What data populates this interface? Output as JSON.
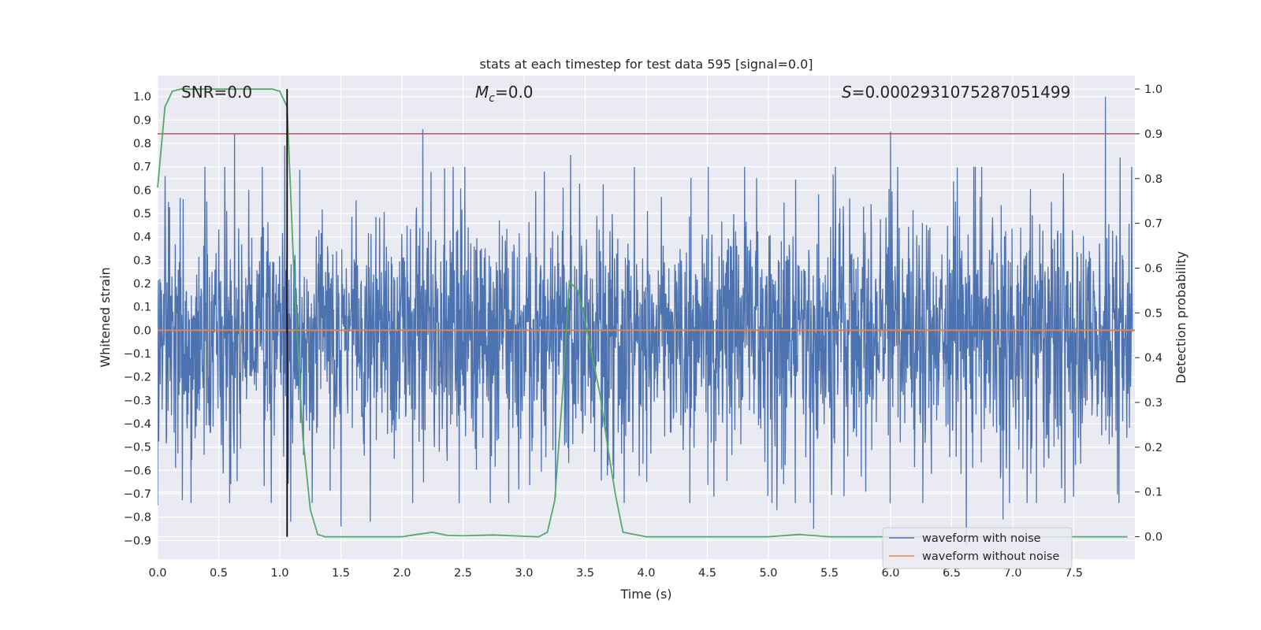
{
  "chart_data": {
    "type": "line",
    "title": "stats at each timestep for test data 595 [signal=0.0]",
    "xlabel": "Time (s)",
    "ylabel_left": "Whitened strain",
    "ylabel_right": "Detection probability",
    "xlim": [
      0.0,
      8.0
    ],
    "ylim_left": [
      -0.98,
      1.09
    ],
    "ylim_right": [
      -0.05,
      1.03
    ],
    "x_ticks": [
      0.0,
      0.5,
      1.0,
      1.5,
      2.0,
      2.5,
      3.0,
      3.5,
      4.0,
      4.5,
      5.0,
      5.5,
      6.0,
      6.5,
      7.0,
      7.5
    ],
    "x_tick_labels": [
      "0.0",
      "0.5",
      "1.0",
      "1.5",
      "2.0",
      "2.5",
      "3.0",
      "3.5",
      "4.0",
      "4.5",
      "5.0",
      "5.5",
      "6.0",
      "6.5",
      "7.0",
      "7.5"
    ],
    "y_left_ticks": [
      -0.9,
      -0.8,
      -0.7,
      -0.6,
      -0.5,
      -0.4,
      -0.3,
      -0.2,
      -0.1,
      0.0,
      0.1,
      0.2,
      0.3,
      0.4,
      0.5,
      0.6,
      0.7,
      0.8,
      0.9,
      1.0
    ],
    "y_left_tick_labels": [
      "−0.9",
      "−0.8",
      "−0.7",
      "−0.6",
      "−0.5",
      "−0.4",
      "−0.3",
      "−0.2",
      "−0.1",
      "0.0",
      "0.1",
      "0.2",
      "0.3",
      "0.4",
      "0.5",
      "0.6",
      "0.7",
      "0.8",
      "0.9",
      "1.0"
    ],
    "y_right_ticks": [
      0.0,
      0.1,
      0.2,
      0.3,
      0.4,
      0.5,
      0.6,
      0.7,
      0.8,
      0.9,
      1.0
    ],
    "y_right_tick_labels": [
      "0.0",
      "0.1",
      "0.2",
      "0.3",
      "0.4",
      "0.5",
      "0.6",
      "0.7",
      "0.8",
      "0.9",
      "1.0"
    ],
    "grid": true,
    "annotations": {
      "snr": "SNR=0.0",
      "mc_symbol": "M",
      "mc_subscript": "c",
      "mc_value": "=0.0",
      "s_symbol": "S",
      "s_value": "=0.0002931075287051499"
    },
    "legend": {
      "placement": "lower-right",
      "entries": [
        "waveform with noise",
        "waveform without noise"
      ]
    },
    "threshold_right": 0.9,
    "marker_time": 1.06,
    "noise_peaks": [
      {
        "t": 0.63,
        "v": 0.84
      },
      {
        "t": 1.04,
        "v": 0.79
      },
      {
        "t": 2.17,
        "v": 0.86
      },
      {
        "t": 3.38,
        "v": 0.75
      },
      {
        "t": 6.0,
        "v": 0.85
      },
      {
        "t": 7.76,
        "v": 1.0
      },
      {
        "t": 7.88,
        "v": 0.74
      },
      {
        "t": 1.09,
        "v": -0.82
      },
      {
        "t": 1.5,
        "v": -0.84
      },
      {
        "t": 1.74,
        "v": -0.82
      },
      {
        "t": 5.37,
        "v": -0.85
      },
      {
        "t": 6.62,
        "v": -0.92
      },
      {
        "t": 6.92,
        "v": -0.81
      },
      {
        "t": 0.0,
        "v": -0.75
      },
      {
        "t": 5.07,
        "v": -0.77
      }
    ],
    "series": [
      {
        "name": "waveform with noise",
        "color": "#4c72b0",
        "style": "dense noise (peaks listed in noise_peaks)"
      },
      {
        "name": "waveform without noise",
        "color": "#dd8452",
        "x": [
          0.0,
          8.0
        ],
        "y": [
          0.0,
          0.0
        ]
      },
      {
        "color": "#55a868",
        "axis": "right",
        "x": [
          0.0,
          0.06,
          0.12,
          0.19,
          0.25,
          0.5,
          0.75,
          0.94,
          1.0,
          1.06,
          1.12,
          1.19,
          1.25,
          1.31,
          1.37,
          1.5,
          1.75,
          2.0,
          2.12,
          2.25,
          2.37,
          2.5,
          2.75,
          3.0,
          3.12,
          3.19,
          3.25,
          3.31,
          3.37,
          3.44,
          3.5,
          3.56,
          3.62,
          3.69,
          3.75,
          3.81,
          4.0,
          4.5,
          5.0,
          5.25,
          5.5,
          6.0,
          6.5,
          7.0,
          7.5,
          7.94
        ],
        "y": [
          0.78,
          0.96,
          0.995,
          1.0,
          1.0,
          1.0,
          1.0,
          1.0,
          0.995,
          0.96,
          0.56,
          0.22,
          0.06,
          0.005,
          0.0,
          0.0,
          0.0,
          0.0,
          0.005,
          0.01,
          0.003,
          0.002,
          0.004,
          0.001,
          0.0,
          0.01,
          0.08,
          0.3,
          0.57,
          0.55,
          0.48,
          0.4,
          0.32,
          0.19,
          0.09,
          0.01,
          0.0,
          0.0,
          0.0,
          0.005,
          0.0,
          0.0,
          0.0,
          0.0,
          0.0,
          0.0
        ]
      },
      {
        "color": "#c44e52",
        "axis": "right",
        "x": [
          0.0,
          8.0
        ],
        "y": [
          0.9,
          0.9
        ]
      },
      {
        "color": "#000000",
        "axis": "right",
        "x": [
          1.06,
          1.06
        ],
        "y": [
          0.0,
          1.0
        ]
      }
    ]
  }
}
